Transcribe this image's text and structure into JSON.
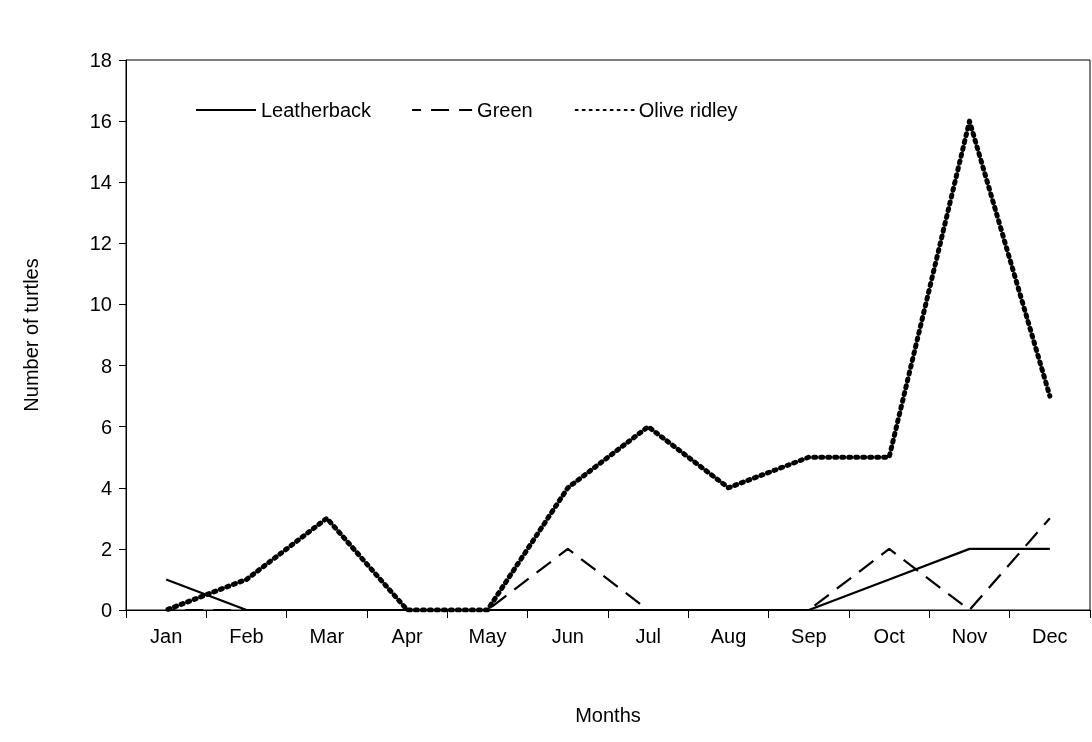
{
  "chart_data": {
    "type": "line",
    "xlabel": "Months",
    "ylabel": "Number of turtles",
    "categories": [
      "Jan",
      "Feb",
      "Mar",
      "Apr",
      "May",
      "Jun",
      "Jul",
      "Aug",
      "Sep",
      "Oct",
      "Nov",
      "Dec"
    ],
    "series": [
      {
        "name": "Leatherback",
        "color": "#000000",
        "line_style": "solid",
        "values": [
          1,
          0,
          0,
          0,
          0,
          0,
          0,
          0,
          0,
          1,
          2,
          2
        ]
      },
      {
        "name": "Green",
        "color": "#000000",
        "line_style": "dashed",
        "values": [
          0,
          0,
          0,
          0,
          0,
          2,
          0,
          0,
          0,
          2,
          0,
          3
        ]
      },
      {
        "name": "Olive ridley",
        "color": "#000000",
        "line_style": "dotted",
        "values": [
          0,
          1,
          3,
          0,
          0,
          4,
          6,
          4,
          5,
          5,
          16,
          7
        ]
      }
    ],
    "ylim": [
      0,
      18
    ],
    "yticks": [
      0,
      2,
      4,
      6,
      8,
      10,
      12,
      14,
      16,
      18
    ],
    "grid": false,
    "legend": "top left",
    "marker": "none"
  }
}
